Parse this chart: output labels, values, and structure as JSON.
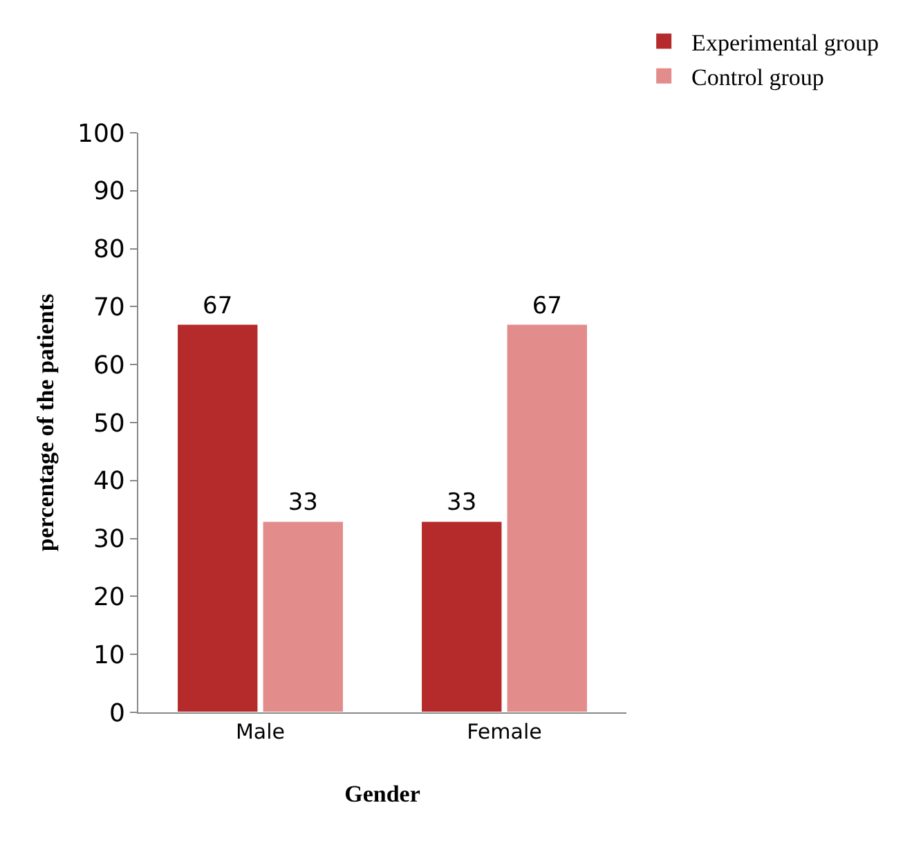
{
  "chart_data": {
    "type": "bar",
    "xlabel": "Gender",
    "ylabel": "percentage of the patients",
    "categories": [
      "Male",
      "Female"
    ],
    "series": [
      {
        "name": "Experimental group",
        "color": "#b52b2b",
        "values": [
          67,
          33
        ]
      },
      {
        "name": "Control group",
        "color": "#e28c8c",
        "values": [
          33,
          67
        ]
      }
    ],
    "ylim": [
      0,
      100
    ],
    "yticks": [
      0,
      10,
      20,
      30,
      40,
      50,
      60,
      70,
      80,
      90,
      100
    ],
    "data_labels": true,
    "grid": false,
    "legend": "top right"
  }
}
